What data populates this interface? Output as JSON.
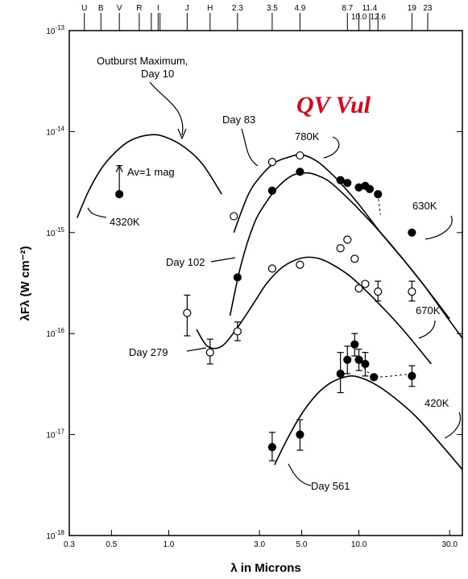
{
  "chart_data": {
    "type": "scatter",
    "title": "QV Vul",
    "xlabel": "λ in Microns",
    "ylabel": "λFλ (W cm⁻²)",
    "xscale": "log",
    "yscale": "log",
    "xlim": [
      0.3,
      35
    ],
    "ylim": [
      1e-18,
      1e-13
    ],
    "grid": false,
    "x_ticks": [
      {
        "v": 0.3,
        "label": "0.3"
      },
      {
        "v": 0.5,
        "label": "0.5"
      },
      {
        "v": 1.0,
        "label": "1.0"
      },
      {
        "v": 3.0,
        "label": "3.0"
      },
      {
        "v": 5.0,
        "label": "5.0"
      },
      {
        "v": 10.0,
        "label": "10.0"
      },
      {
        "v": 30.0,
        "label": "30.0"
      }
    ],
    "y_ticks": [
      {
        "v": 1e-13,
        "label": "10-13"
      },
      {
        "v": 1e-14,
        "label": "10-14"
      },
      {
        "v": 1e-15,
        "label": "10-15"
      },
      {
        "v": 1e-16,
        "label": "10-16"
      },
      {
        "v": 1e-17,
        "label": "10-17"
      },
      {
        "v": 1e-18,
        "label": "10-18"
      }
    ],
    "band_labels": [
      {
        "band": "U",
        "x": 0.36
      },
      {
        "band": "B",
        "x": 0.44
      },
      {
        "band": "V",
        "x": 0.55
      },
      {
        "band": "R",
        "x": 0.7
      },
      {
        "band": "I",
        "x": 0.88
      },
      {
        "band": "J",
        "x": 1.25
      },
      {
        "band": "H",
        "x": 1.65
      },
      {
        "band": "2.3",
        "x": 2.3
      },
      {
        "band": "3.5",
        "x": 3.5
      },
      {
        "band": "4.9",
        "x": 4.9
      },
      {
        "band": "8.7",
        "x": 8.7
      },
      {
        "band": "11.4",
        "x": 11.4
      },
      {
        "band": "10.0",
        "x": 10.0
      },
      {
        "band": "12.6",
        "x": 12.6
      },
      {
        "band": "19",
        "x": 19.0
      },
      {
        "band": "23",
        "x": 23.0
      }
    ],
    "band_ticks": [
      0.36,
      0.44,
      0.55,
      0.7,
      0.81,
      0.88,
      0.9,
      1.25,
      1.65,
      2.3,
      3.5,
      4.9,
      8.7,
      10.0,
      11.4,
      12.6,
      19.0,
      23.0
    ],
    "series": [
      {
        "day": "Day 10",
        "marker": "filled",
        "points": [
          {
            "x": 0.55,
            "y": 2.4e-15,
            "err_up": 4.6e-15
          }
        ],
        "curve": [
          [
            0.33,
            1.4e-15
          ],
          [
            0.38,
            2.6e-15
          ],
          [
            0.45,
            4.5e-15
          ],
          [
            0.55,
            6.8e-15
          ],
          [
            0.65,
            8.4e-15
          ],
          [
            0.8,
            9.3e-15
          ],
          [
            0.95,
            8.9e-15
          ],
          [
            1.2,
            7.1e-15
          ],
          [
            1.5,
            4.8e-15
          ],
          [
            1.9,
            2.4e-15
          ]
        ]
      },
      {
        "day": "Day 83",
        "marker": "open",
        "points": [
          {
            "x": 2.2,
            "y": 1.45e-15
          },
          {
            "x": 3.5,
            "y": 5e-15
          },
          {
            "x": 4.9,
            "y": 5.8e-15
          }
        ],
        "curve": [
          [
            2.2,
            1e-15
          ],
          [
            2.6,
            2.3e-15
          ],
          [
            3.0,
            3.5e-15
          ],
          [
            3.6,
            4.9e-15
          ],
          [
            4.3,
            5.6e-15
          ],
          [
            5.0,
            5.9e-15
          ],
          [
            6.0,
            5.1e-15
          ],
          [
            7.0,
            4e-15
          ],
          [
            8.0,
            3.1e-15
          ],
          [
            10.0,
            1.9e-15
          ],
          [
            13.0,
            1e-15
          ],
          [
            17.0,
            5.5e-16
          ],
          [
            22.0,
            3e-16
          ],
          [
            28.0,
            1.6e-16
          ],
          [
            35.0,
            9e-17
          ]
        ]
      },
      {
        "day": "Day 102",
        "marker": "filled",
        "points": [
          {
            "x": 2.3,
            "y": 3.6e-16
          },
          {
            "x": 3.5,
            "y": 2.6e-15
          },
          {
            "x": 4.9,
            "y": 4e-15
          },
          {
            "x": 8.0,
            "y": 3.3e-15
          },
          {
            "x": 8.7,
            "y": 3.1e-15
          },
          {
            "x": 10.0,
            "y": 2.8e-15
          },
          {
            "x": 10.8,
            "y": 2.9e-15
          },
          {
            "x": 11.4,
            "y": 2.7e-15
          },
          {
            "x": 12.6,
            "y": 2.4e-15
          },
          {
            "x": 19.0,
            "y": 1e-15
          }
        ],
        "dashed": [
          [
            12.6,
            2.4e-15
          ],
          [
            13.0,
            1.5e-15
          ]
        ],
        "curve": [
          [
            2.1,
            1.5e-16
          ],
          [
            2.4,
            4.8e-16
          ],
          [
            2.8,
            1.2e-15
          ],
          [
            3.2,
            1.9e-15
          ],
          [
            3.8,
            2.9e-15
          ],
          [
            4.5,
            3.7e-15
          ],
          [
            5.3,
            3.9e-15
          ],
          [
            6.0,
            3.7e-15
          ],
          [
            7.0,
            3.2e-15
          ],
          [
            8.5,
            2.3e-15
          ],
          [
            10.0,
            1.7e-15
          ],
          [
            13.0,
            1e-15
          ],
          [
            17.0,
            5.5e-16
          ],
          [
            22.0,
            3e-16
          ],
          [
            30.0,
            1.4e-16
          ]
        ]
      },
      {
        "day": "Day 279",
        "marker": "open",
        "points": [
          {
            "x": 1.25,
            "y": 1.6e-16,
            "err_up": 2.4e-16,
            "err_dn": 9.5e-17
          },
          {
            "x": 1.65,
            "y": 6.5e-17,
            "err_up": 8.8e-17,
            "err_dn": 5e-17
          },
          {
            "x": 2.3,
            "y": 1.05e-16,
            "err_up": 1.3e-16,
            "err_dn": 8.5e-17
          },
          {
            "x": 3.5,
            "y": 4.4e-16
          },
          {
            "x": 4.9,
            "y": 4.8e-16
          },
          {
            "x": 8.0,
            "y": 7e-16
          },
          {
            "x": 8.7,
            "y": 8.5e-16
          },
          {
            "x": 9.5,
            "y": 5.5e-16
          },
          {
            "x": 10.0,
            "y": 2.8e-16
          },
          {
            "x": 10.8,
            "y": 3.1e-16
          },
          {
            "x": 12.6,
            "y": 2.6e-16,
            "err_up": 3.3e-16,
            "err_dn": 2.1e-16
          },
          {
            "x": 19.0,
            "y": 2.6e-16,
            "err_up": 3.3e-16,
            "err_dn": 2.1e-16
          }
        ],
        "curve": [
          [
            1.4,
            1.1e-16
          ],
          [
            1.6,
            7.5e-17
          ],
          [
            1.9,
            7.5e-17
          ],
          [
            2.3,
            1.15e-16
          ],
          [
            2.8,
            2e-16
          ],
          [
            3.3,
            3.2e-16
          ],
          [
            4.0,
            4.6e-16
          ],
          [
            5.0,
            5.6e-16
          ],
          [
            6.0,
            5.6e-16
          ],
          [
            7.0,
            5e-16
          ],
          [
            8.5,
            4e-16
          ],
          [
            10.0,
            3.1e-16
          ],
          [
            13.0,
            1.9e-16
          ],
          [
            17.0,
            1.1e-16
          ],
          [
            24.0,
            5e-17
          ]
        ]
      },
      {
        "day": "Day 561",
        "marker": "filled",
        "points": [
          {
            "x": 3.5,
            "y": 7.5e-18,
            "err_up": 1.05e-17,
            "err_dn": 5.5e-18
          },
          {
            "x": 4.9,
            "y": 1e-17,
            "err_up": 1.4e-17,
            "err_dn": 7e-18
          },
          {
            "x": 8.0,
            "y": 4e-17,
            "err_up": 6.5e-17,
            "err_dn": 2.6e-17
          },
          {
            "x": 8.7,
            "y": 5.5e-17,
            "err_up": 7.5e-17,
            "err_dn": 4e-17
          },
          {
            "x": 9.5,
            "y": 7.8e-17,
            "err_up": 1e-16,
            "err_dn": 6e-17
          },
          {
            "x": 10.0,
            "y": 5.5e-17,
            "err_up": 7e-17,
            "err_dn": 4.3e-17
          },
          {
            "x": 10.8,
            "y": 5e-17,
            "err_up": 6.5e-17,
            "err_dn": 3.8e-17
          },
          {
            "x": 12.0,
            "y": 3.7e-17
          },
          {
            "x": 19.0,
            "y": 3.8e-17,
            "err_up": 4.8e-17,
            "err_dn": 3e-17
          }
        ],
        "dashed": [
          [
            10.0,
            5.5e-17
          ],
          [
            11.0,
            4.2e-17
          ],
          [
            12.6,
            3.7e-17
          ],
          [
            15.0,
            3.8e-17
          ],
          [
            19.0,
            4e-17
          ]
        ],
        "curve": [
          [
            3.6,
            5e-18
          ],
          [
            4.2,
            9e-18
          ],
          [
            5.0,
            1.6e-17
          ],
          [
            6.0,
            2.5e-17
          ],
          [
            7.0,
            3.2e-17
          ],
          [
            8.0,
            3.6e-17
          ],
          [
            9.0,
            3.8e-17
          ],
          [
            10.0,
            3.7e-17
          ],
          [
            12.0,
            3.2e-17
          ],
          [
            15.0,
            2.4e-17
          ],
          [
            20.0,
            1.5e-17
          ],
          [
            27.0,
            8e-18
          ],
          [
            35.0,
            4.5e-18
          ]
        ]
      }
    ]
  },
  "annotations": {
    "outburst_line1": "Outburst Maximum,",
    "outburst_line2": "Day 10",
    "av": "Av=1 mag",
    "t4320": "4320K",
    "day83": "Day 83",
    "t780": "780K",
    "t630": "630K",
    "day102": "Day 102",
    "day279": "Day 279",
    "t670": "670K",
    "t420": "420K",
    "day561": "Day 561"
  },
  "colors": {
    "title": "#e0001a",
    "ink": "#000000"
  }
}
